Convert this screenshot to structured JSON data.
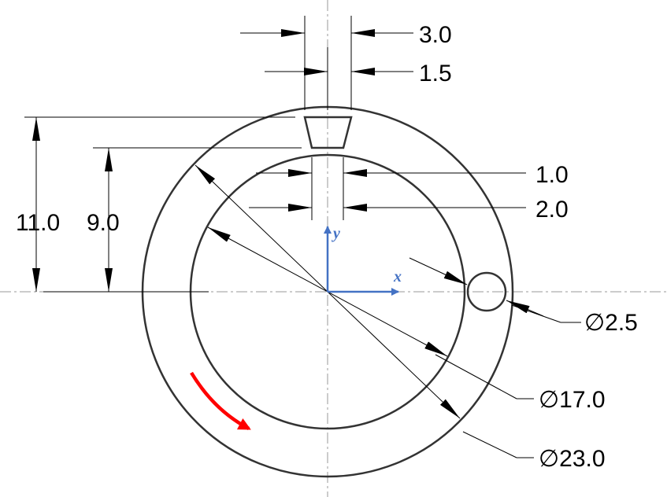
{
  "dimensions": {
    "top_width": "3.0",
    "bottom_width": "1.5",
    "slot_inner_width": "1.0",
    "slot_outer_width": "2.0",
    "outer_radius_height": "11.0",
    "inner_radius_height": "9.0",
    "hole_diameter": "∅2.5",
    "inner_diameter": "∅17.0",
    "outer_diameter": "∅23.0"
  },
  "axes": {
    "x_label": "x",
    "y_label": "y"
  },
  "colors": {
    "line": "#333333",
    "axis_blue": "#4472c4",
    "rotation_arrow": "#ff0000",
    "centerline": "#999999"
  }
}
